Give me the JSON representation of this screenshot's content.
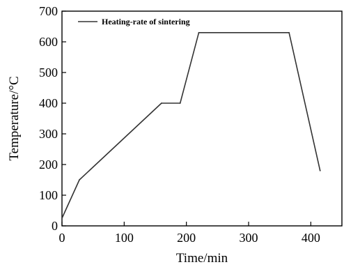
{
  "chart_data": {
    "type": "line",
    "title": "",
    "xlabel": "Time/min",
    "ylabel": "Temperature/°C",
    "xlim": [
      0,
      450
    ],
    "ylim": [
      0,
      700
    ],
    "x_ticks": [
      0,
      100,
      200,
      300,
      400
    ],
    "y_ticks": [
      0,
      100,
      200,
      300,
      400,
      500,
      600,
      700
    ],
    "grid": false,
    "legend_position": "top-left",
    "series": [
      {
        "name": "Heating-rate of sintering",
        "color": "#333333",
        "x": [
          0,
          28,
          160,
          190,
          220,
          365,
          415
        ],
        "y": [
          25,
          150,
          400,
          400,
          630,
          630,
          180
        ]
      }
    ]
  }
}
